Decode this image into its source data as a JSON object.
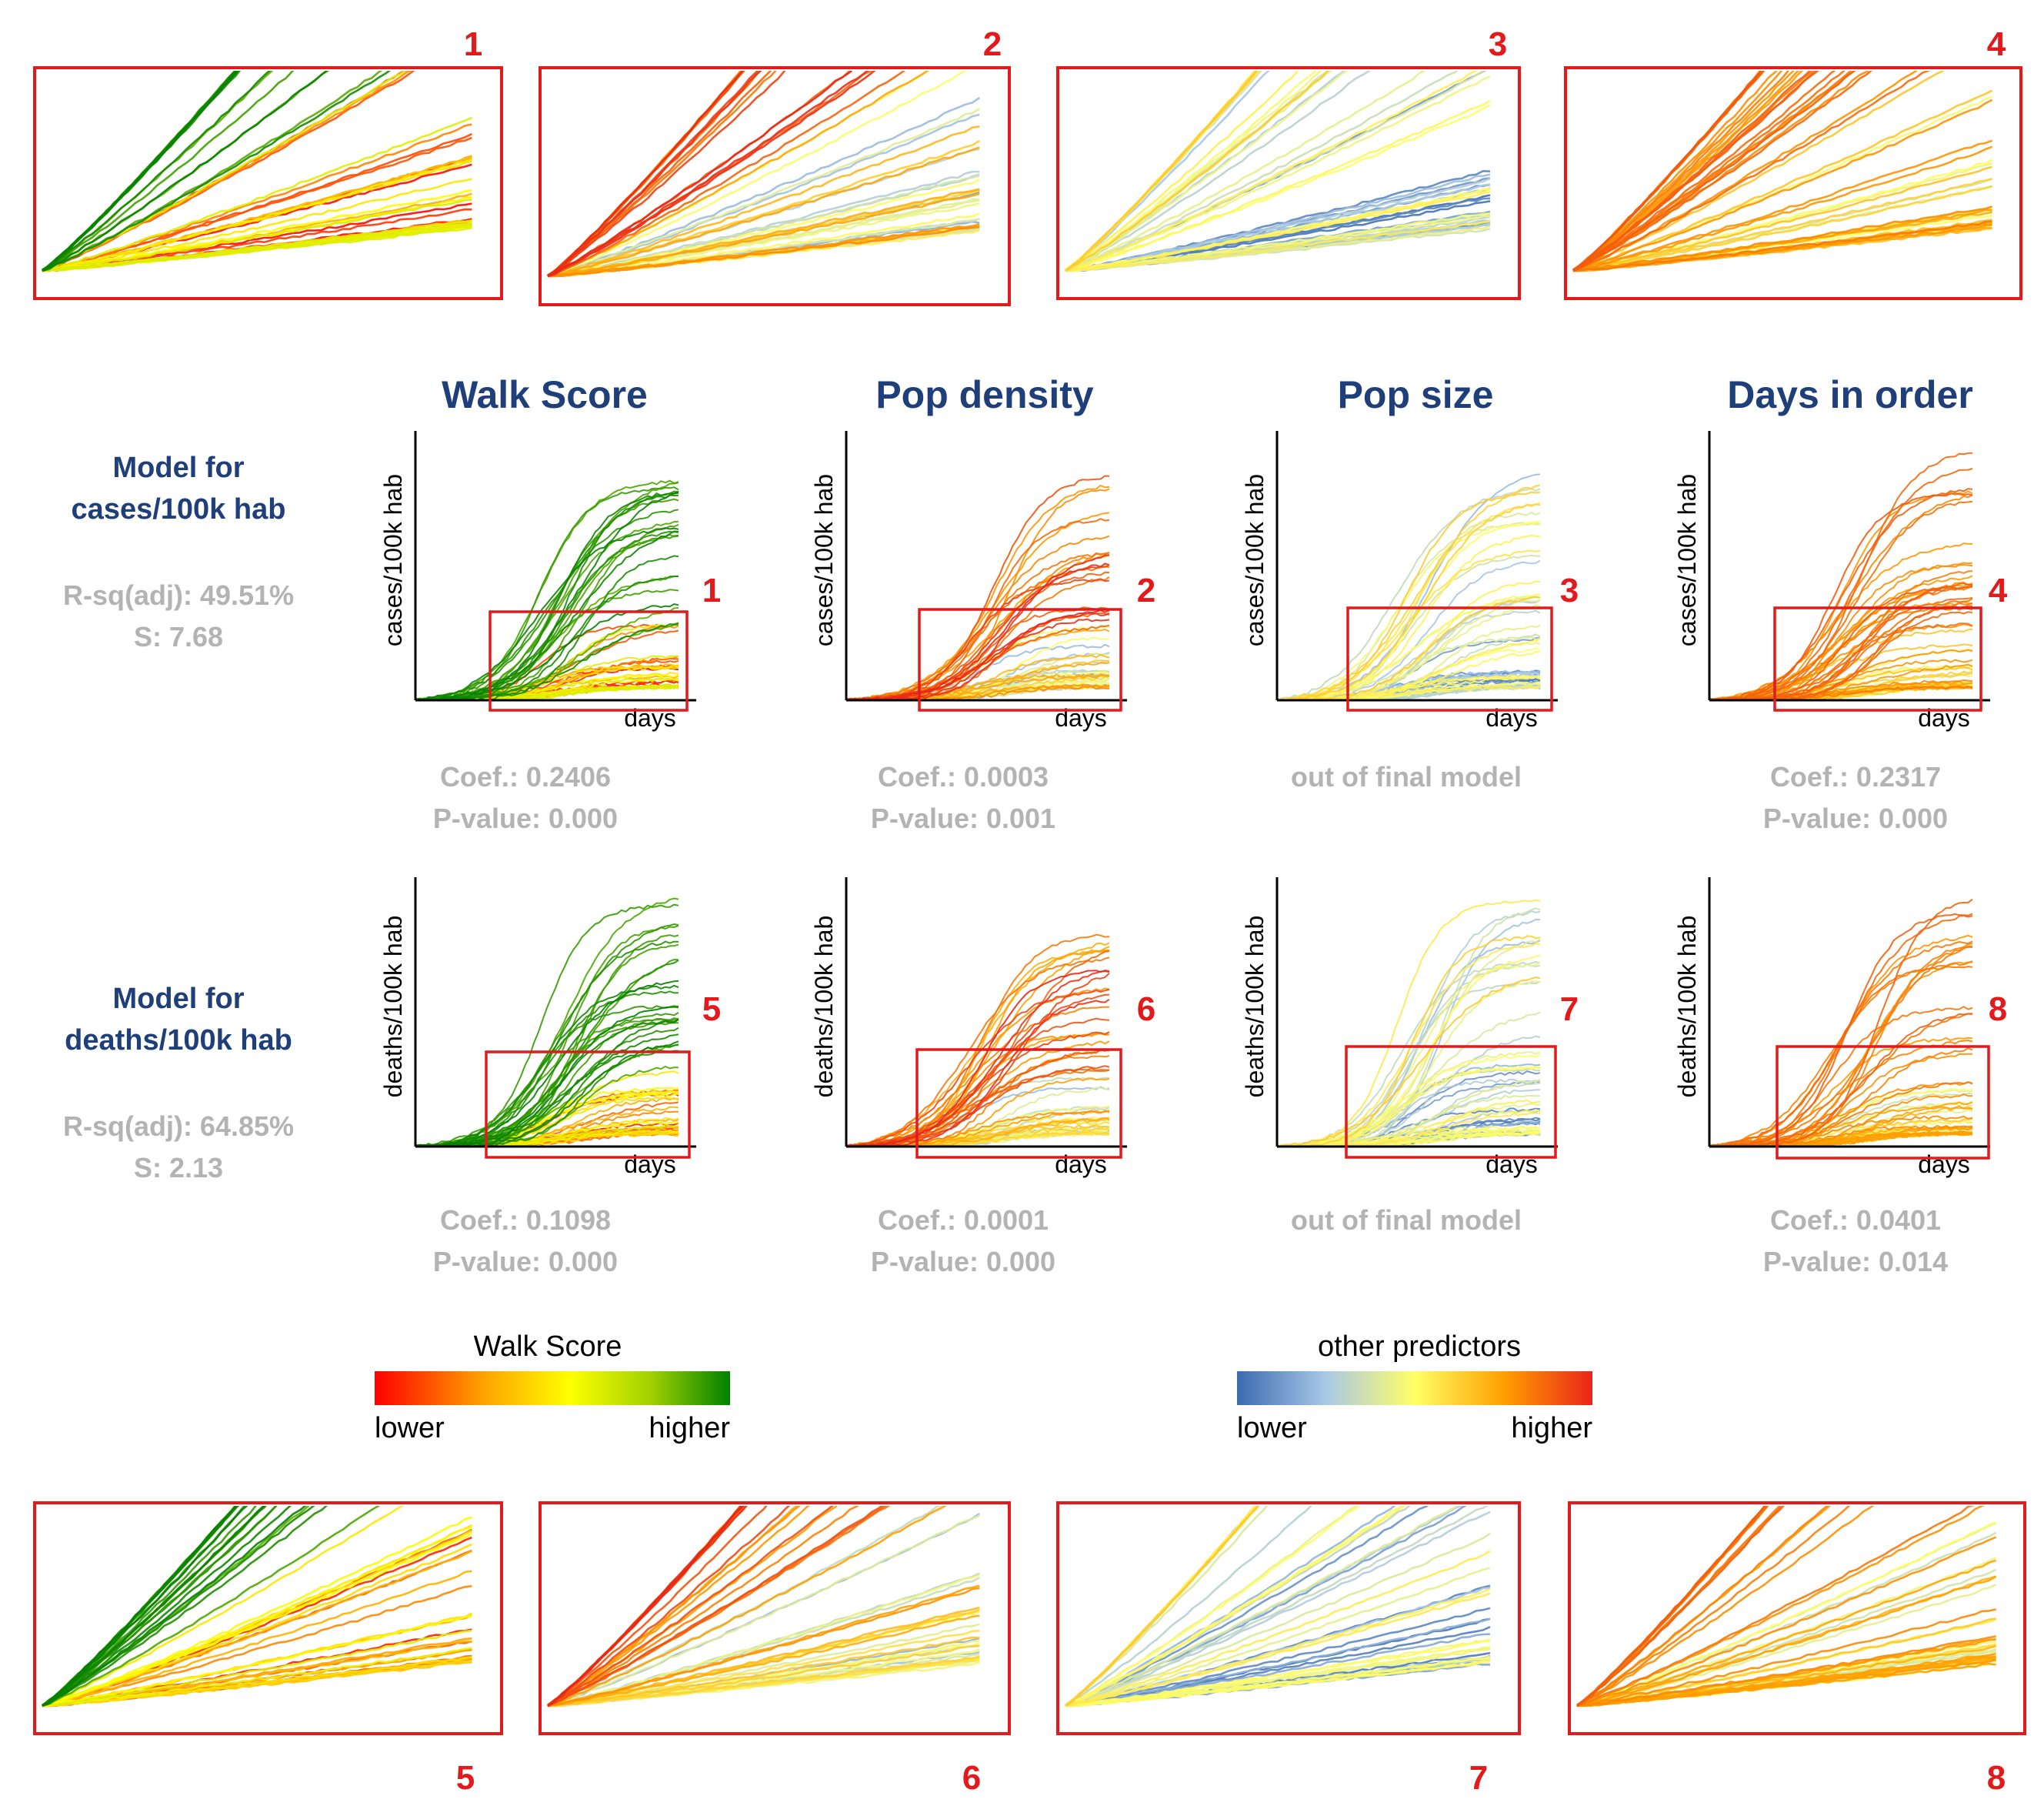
{
  "figure": {
    "column_titles": [
      "Walk Score",
      "Pop density",
      "Pop size",
      "Days in order"
    ],
    "row_models": [
      {
        "title_line1": "Model for",
        "title_line2": "cases/100k hab",
        "rsq": "R-sq(adj): 49.51%",
        "s": "S: 7.68"
      },
      {
        "title_line1": "Model for",
        "title_line2": "deaths/100k hab",
        "rsq": "R-sq(adj): 64.85%",
        "s": "S: 2.13"
      }
    ],
    "coef_labels": [
      [
        "Coef.: 0.2406",
        "P-value: 0.000"
      ],
      [
        "Coef.: 0.0003",
        "P-value: 0.001"
      ],
      [
        "out of final model",
        ""
      ],
      [
        "Coef.: 0.2317",
        "P-value: 0.000"
      ],
      [
        "Coef.: 0.1098",
        "P-value: 0.000"
      ],
      [
        "Coef.: 0.0001",
        "P-value: 0.000"
      ],
      [
        "out of final model",
        ""
      ],
      [
        "Coef.: 0.0401",
        "P-value: 0.014"
      ]
    ],
    "zoom_numbers": [
      "1",
      "2",
      "3",
      "4",
      "5",
      "6",
      "7",
      "8"
    ],
    "xlabel": "days",
    "ylabels": [
      "cases/100k hab",
      "deaths/100k hab"
    ],
    "legend_walk": {
      "title": "Walk Score",
      "low": "lower",
      "high": "higher"
    },
    "legend_other": {
      "title": "other predictors",
      "low": "lower",
      "high": "higher"
    }
  },
  "colors": {
    "title_blue": "#1f3f7a",
    "stats_gray": "#b3b3b3",
    "zoom_red": "#e31a1c",
    "walk_scale": [
      "#ff0000",
      "#ffa000",
      "#ffff00",
      "#9fd000",
      "#008000"
    ],
    "other_scale": [
      "#3a6bb0",
      "#a9c8e6",
      "#ffff66",
      "#ffa000",
      "#e8261a"
    ]
  },
  "chart_data": [
    {
      "type": "line",
      "panel": 1,
      "row": "cases",
      "color_by": "Walk Score",
      "xlabel": "days",
      "ylabel": "cases/100k hab",
      "coef": 0.2406,
      "p_value": 0.0,
      "zoom": "1"
    },
    {
      "type": "line",
      "panel": 2,
      "row": "cases",
      "color_by": "Pop density",
      "xlabel": "days",
      "ylabel": "cases/100k hab",
      "coef": 0.0003,
      "p_value": 0.001,
      "zoom": "2"
    },
    {
      "type": "line",
      "panel": 3,
      "row": "cases",
      "color_by": "Pop size",
      "xlabel": "days",
      "ylabel": "cases/100k hab",
      "coef": null,
      "p_value": null,
      "note": "out of final model",
      "zoom": "3"
    },
    {
      "type": "line",
      "panel": 4,
      "row": "cases",
      "color_by": "Days in order",
      "xlabel": "days",
      "ylabel": "cases/100k hab",
      "coef": 0.2317,
      "p_value": 0.0,
      "zoom": "4"
    },
    {
      "type": "line",
      "panel": 5,
      "row": "deaths",
      "color_by": "Walk Score",
      "xlabel": "days",
      "ylabel": "deaths/100k hab",
      "coef": 0.1098,
      "p_value": 0.0,
      "zoom": "5"
    },
    {
      "type": "line",
      "panel": 6,
      "row": "deaths",
      "color_by": "Pop density",
      "xlabel": "days",
      "ylabel": "deaths/100k hab",
      "coef": 0.0001,
      "p_value": 0.0,
      "zoom": "6"
    },
    {
      "type": "line",
      "panel": 7,
      "row": "deaths",
      "color_by": "Pop size",
      "xlabel": "days",
      "ylabel": "deaths/100k hab",
      "coef": null,
      "p_value": null,
      "note": "out of final model",
      "zoom": "7"
    },
    {
      "type": "line",
      "panel": 8,
      "row": "deaths",
      "color_by": "Days in order",
      "xlabel": "days",
      "ylabel": "deaths/100k hab",
      "coef": 0.0401,
      "p_value": 0.014,
      "zoom": "8"
    }
  ]
}
